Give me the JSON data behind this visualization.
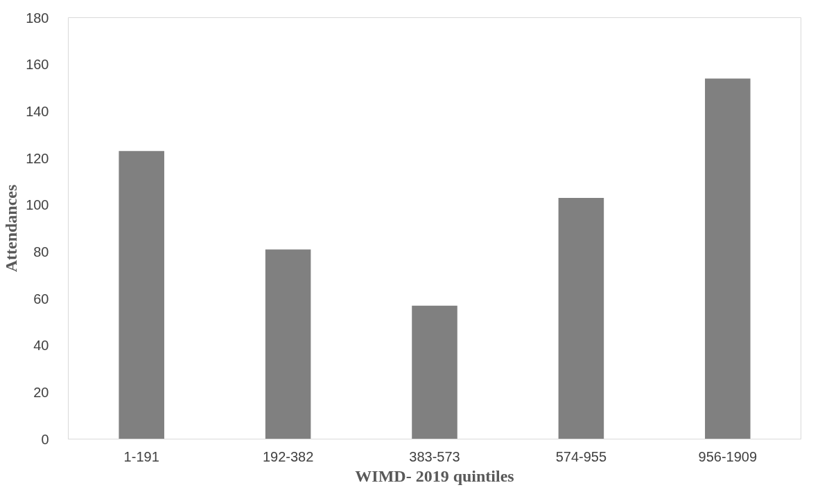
{
  "chart_data": {
    "type": "bar",
    "xlabel": "WIMD- 2019 quintiles",
    "ylabel": "Attendances",
    "categories": [
      "1-191",
      "192-382",
      "383-573",
      "574-955",
      "956-1909"
    ],
    "values": [
      123,
      81,
      57,
      103,
      154
    ],
    "color": "#808080",
    "ylim": [
      0,
      180
    ],
    "yticks": [
      0,
      20,
      40,
      60,
      80,
      100,
      120,
      140,
      160,
      180
    ],
    "grid": false
  }
}
